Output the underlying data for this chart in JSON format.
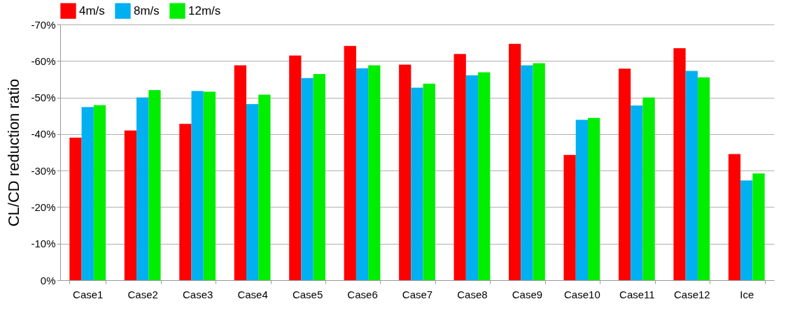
{
  "chart_data": {
    "type": "bar",
    "ylabel": "CL/CD reduction ratio",
    "categories": [
      "Case1",
      "Case2",
      "Case3",
      "Case4",
      "Case5",
      "Case6",
      "Case7",
      "Case8",
      "Case9",
      "Case10",
      "Case11",
      "Case12",
      "Ice"
    ],
    "series": [
      {
        "name": "4m/s",
        "color": "#ff0000",
        "values": [
          -39,
          -41,
          -42.8,
          -58.8,
          -61.5,
          -64.1,
          -59,
          -61.9,
          -64.7,
          -34.3,
          -57.9,
          -63.5,
          -34.5
        ]
      },
      {
        "name": "8m/s",
        "color": "#00b0f0",
        "values": [
          -47.4,
          -50,
          -51.8,
          -48.2,
          -55.3,
          -58,
          -52.7,
          -56.1,
          -58.8,
          -43.9,
          -47.8,
          -57.3,
          -27.3
        ]
      },
      {
        "name": "12m/s",
        "color": "#00ee00",
        "values": [
          -47.9,
          -52,
          -51.6,
          -50.8,
          -56.4,
          -58.8,
          -53.8,
          -56.9,
          -59.4,
          -44.4,
          -50,
          -55.5,
          -29.2
        ]
      }
    ],
    "ylim": [
      0,
      -70
    ],
    "yticks": [
      {
        "value": 0,
        "label": "0%"
      },
      {
        "value": -10,
        "label": "-10%"
      },
      {
        "value": -20,
        "label": "-20%"
      },
      {
        "value": -30,
        "label": "-30%"
      },
      {
        "value": -40,
        "label": "-40%"
      },
      {
        "value": -50,
        "label": "-50%"
      },
      {
        "value": -60,
        "label": "-60%"
      },
      {
        "value": -70,
        "label": "-70%"
      }
    ],
    "grid": "y",
    "legend": "top left"
  }
}
